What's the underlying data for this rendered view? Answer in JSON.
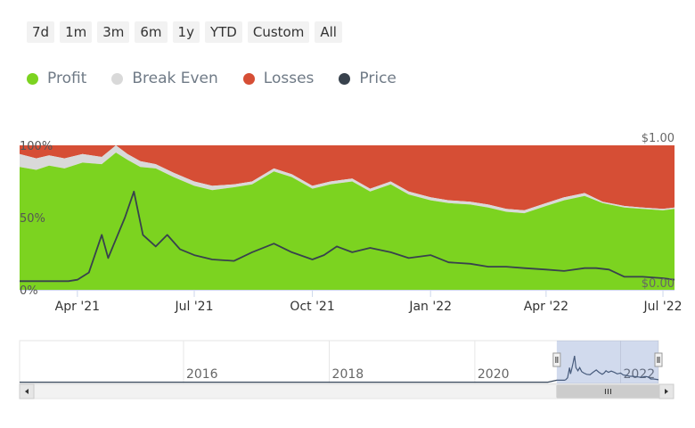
{
  "range_selector": {
    "buttons": [
      "7d",
      "1m",
      "3m",
      "6m",
      "1y",
      "YTD",
      "Custom",
      "All"
    ]
  },
  "legend": [
    {
      "label": "Profit",
      "color": "#7cd320"
    },
    {
      "label": "Break Even",
      "color": "#d9d9d9"
    },
    {
      "label": "Losses",
      "color": "#d64e35"
    },
    {
      "label": "Price",
      "color": "#38424d"
    }
  ],
  "chart_data": {
    "type": "area",
    "x_tick_labels": [
      "Apr '21",
      "Jul '21",
      "Oct '21",
      "Jan '22",
      "Apr '22",
      "Jul '22"
    ],
    "y_left_tick_labels": [
      "100%",
      "50%",
      "0%"
    ],
    "y_right_tick_labels": [
      "$1.00",
      "$0.00"
    ],
    "ylim_percent": [
      0,
      100
    ],
    "ylim_price": [
      0,
      1
    ],
    "x_range": [
      "2021-02-15",
      "2022-07-10"
    ],
    "grid": false,
    "legend_position": "top-left",
    "series": [
      {
        "name": "Profit",
        "type": "stacked-area-percent",
        "x": [
          "2021-02-15",
          "2021-02-28",
          "2021-03-10",
          "2021-03-22",
          "2021-04-05",
          "2021-04-20",
          "2021-05-01",
          "2021-05-10",
          "2021-05-20",
          "2021-06-01",
          "2021-06-15",
          "2021-07-01",
          "2021-07-15",
          "2021-08-01",
          "2021-08-15",
          "2021-09-01",
          "2021-09-15",
          "2021-10-01",
          "2021-10-15",
          "2021-11-01",
          "2021-11-15",
          "2021-12-01",
          "2021-12-15",
          "2022-01-01",
          "2022-01-15",
          "2022-02-01",
          "2022-02-15",
          "2022-03-01",
          "2022-03-15",
          "2022-04-01",
          "2022-04-15",
          "2022-05-01",
          "2022-05-15",
          "2022-06-01",
          "2022-06-15",
          "2022-07-01",
          "2022-07-10"
        ],
        "values": [
          85,
          83,
          86,
          84,
          88,
          87,
          95,
          90,
          85,
          84,
          78,
          72,
          69,
          71,
          73,
          82,
          78,
          70,
          73,
          75,
          68,
          73,
          66,
          62,
          60,
          59,
          57,
          54,
          53,
          58,
          62,
          65,
          60,
          57,
          56,
          55,
          56
        ]
      },
      {
        "name": "Break Even",
        "type": "stacked-area-percent",
        "values": [
          9,
          8,
          7,
          7,
          6,
          5,
          5,
          4,
          4,
          3,
          3,
          3,
          3,
          2,
          2,
          2,
          2,
          2,
          2,
          2,
          2,
          2,
          2,
          2,
          2,
          2,
          2,
          2,
          2,
          2,
          2,
          2,
          1,
          1,
          1,
          1,
          1
        ]
      },
      {
        "name": "Losses",
        "type": "stacked-area-percent",
        "values": [
          6,
          9,
          7,
          9,
          6,
          8,
          0,
          6,
          11,
          13,
          19,
          25,
          28,
          27,
          25,
          16,
          20,
          28,
          25,
          23,
          30,
          25,
          32,
          36,
          38,
          39,
          41,
          44,
          45,
          40,
          36,
          33,
          39,
          42,
          43,
          44,
          43
        ]
      },
      {
        "name": "Price",
        "type": "line",
        "axis": "right",
        "x": [
          "2021-02-15",
          "2021-03-01",
          "2021-03-25",
          "2021-04-01",
          "2021-04-10",
          "2021-04-20",
          "2021-04-25",
          "2021-05-01",
          "2021-05-08",
          "2021-05-15",
          "2021-05-22",
          "2021-06-01",
          "2021-06-10",
          "2021-06-20",
          "2021-07-01",
          "2021-07-15",
          "2021-08-01",
          "2021-08-15",
          "2021-09-01",
          "2021-09-15",
          "2021-10-01",
          "2021-10-10",
          "2021-10-20",
          "2021-11-01",
          "2021-11-15",
          "2021-12-01",
          "2021-12-15",
          "2022-01-01",
          "2022-01-15",
          "2022-02-01",
          "2022-02-15",
          "2022-03-01",
          "2022-03-15",
          "2022-04-01",
          "2022-04-15",
          "2022-05-01",
          "2022-05-10",
          "2022-05-20",
          "2022-06-01",
          "2022-06-15",
          "2022-07-01",
          "2022-07-10"
        ],
        "values": [
          0.06,
          0.06,
          0.06,
          0.07,
          0.12,
          0.38,
          0.22,
          0.35,
          0.5,
          0.68,
          0.38,
          0.3,
          0.38,
          0.28,
          0.24,
          0.21,
          0.2,
          0.26,
          0.32,
          0.26,
          0.21,
          0.24,
          0.3,
          0.26,
          0.29,
          0.26,
          0.22,
          0.24,
          0.19,
          0.18,
          0.16,
          0.16,
          0.15,
          0.14,
          0.13,
          0.15,
          0.15,
          0.14,
          0.09,
          0.09,
          0.08,
          0.07
        ]
      }
    ],
    "navigator": {
      "x_tick_labels": [
        "2016",
        "2018",
        "2020",
        "2022"
      ]
    }
  }
}
